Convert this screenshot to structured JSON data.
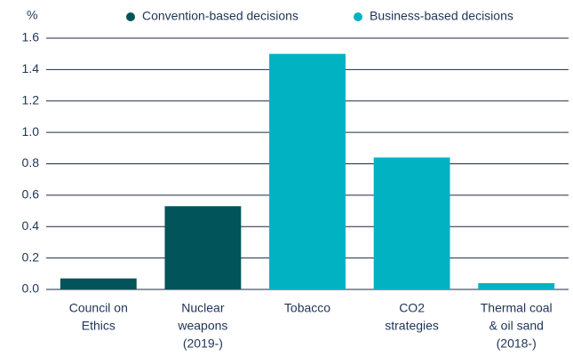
{
  "chart_data": {
    "type": "bar",
    "y_label": "%",
    "categories": [
      [
        "Council on",
        "Ethics"
      ],
      [
        "Nuclear",
        "weapons",
        "(2019-)"
      ],
      [
        "Tobacco"
      ],
      [
        "CO2",
        "strategies"
      ],
      [
        "Thermal coal",
        "& oil sand",
        "(2018-)"
      ]
    ],
    "series": [
      {
        "name": "Convention-based decisions",
        "color": "#00545a",
        "values": [
          0.07,
          0.53,
          null,
          null,
          null
        ]
      },
      {
        "name": "Business-based decisions",
        "color": "#00b2c2",
        "values": [
          null,
          null,
          1.5,
          0.84,
          0.04
        ]
      }
    ],
    "ylim": [
      0,
      1.6
    ],
    "yticks": [
      {
        "value": 0,
        "label": "0.0"
      },
      0.2,
      0.4,
      0.6,
      0.8,
      {
        "value": 1,
        "label": "1.0"
      },
      1.2,
      1.4,
      1.6
    ],
    "grid": true,
    "legend": "top"
  }
}
